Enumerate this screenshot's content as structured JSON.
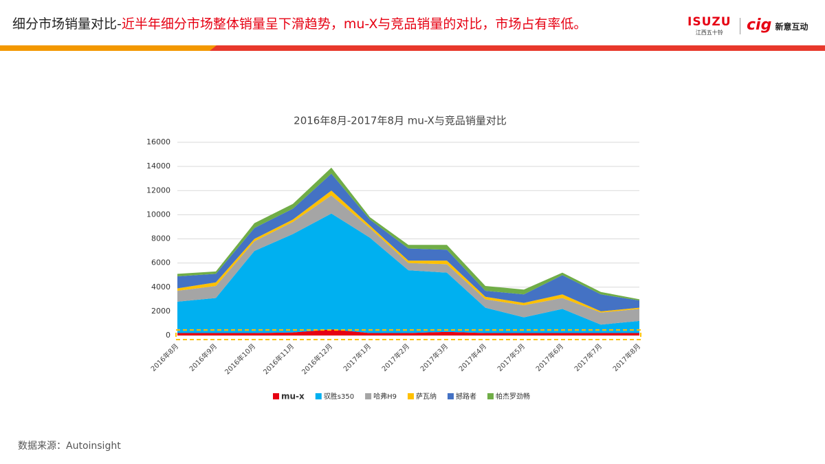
{
  "header": {
    "title_black": "细分市场销量对比-",
    "title_red": "近半年细分市场整体销量呈下滑趋势，mu-X与竞品销量的对比，市场占有率低。",
    "logo_isuzu": "ISUZU",
    "logo_isuzu_sub": "江西五十铃",
    "logo_cig": "cig",
    "logo_cig_sub": "新意互动"
  },
  "footer": {
    "source": "数据来源：Autoinsight"
  },
  "chart_data": {
    "type": "stacked-area",
    "title": "2016年8月-2017年8月 mu-X与竞品销量对比",
    "categories": [
      "2016年8月",
      "2016年9月",
      "2016年10月",
      "2016年11月",
      "2016年12月",
      "2017年1月",
      "2017年2月",
      "2017年3月",
      "2017年4月",
      "2017年5月",
      "2017年6月",
      "2017年7月",
      "2017年8月"
    ],
    "series": [
      {
        "name": "mu-x",
        "color": "#e60012",
        "values": [
          200,
          200,
          200,
          250,
          500,
          200,
          200,
          300,
          200,
          200,
          200,
          200,
          200
        ]
      },
      {
        "name": "驭胜s350",
        "color": "#00b0f0",
        "values": [
          2600,
          2900,
          6800,
          8150,
          9600,
          7900,
          5200,
          4900,
          2100,
          1300,
          2000,
          700,
          1000
        ]
      },
      {
        "name": "哈弗H9",
        "color": "#a5a5a5",
        "values": [
          900,
          1000,
          800,
          1000,
          1500,
          800,
          600,
          700,
          700,
          1000,
          900,
          1000,
          1000
        ]
      },
      {
        "name": "萨瓦纳",
        "color": "#ffc000",
        "values": [
          200,
          300,
          200,
          200,
          400,
          200,
          200,
          300,
          200,
          200,
          300,
          100,
          100
        ]
      },
      {
        "name": "撼路者",
        "color": "#4472c4",
        "values": [
          1000,
          700,
          900,
          900,
          1400,
          500,
          1000,
          900,
          500,
          700,
          1600,
          1400,
          600
        ]
      },
      {
        "name": "帕杰罗劲畅",
        "color": "#70ad47",
        "values": [
          200,
          200,
          400,
          400,
          500,
          200,
          300,
          400,
          400,
          400,
          200,
          200,
          100
        ]
      }
    ],
    "ylim": [
      0,
      16000
    ],
    "yticks": [
      0,
      2000,
      4000,
      6000,
      8000,
      10000,
      12000,
      14000,
      16000
    ],
    "grid": true,
    "legend": "bottom"
  }
}
